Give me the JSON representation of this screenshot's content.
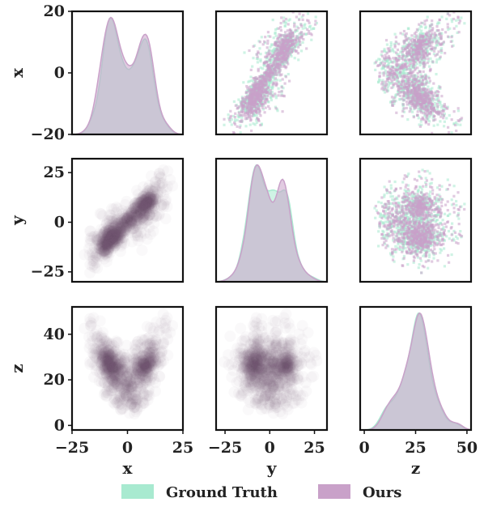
{
  "chart_data": {
    "type": "pairplot",
    "variables": [
      "x",
      "y",
      "z"
    ],
    "series": [
      {
        "name": "Ground Truth",
        "color": "#a8ead0"
      },
      {
        "name": "Ours",
        "color": "#c9a1c9"
      }
    ],
    "legend": {
      "placement": "bottom-center"
    },
    "grid": false,
    "axes": {
      "x": {
        "label": "x",
        "range": [
          -25,
          25
        ],
        "ticks": [
          -25,
          0,
          25
        ],
        "tick_labels": [
          "−25",
          "0",
          "25"
        ]
      },
      "y": {
        "label": "y",
        "range": [
          -30,
          32
        ],
        "ticks": [
          -25,
          0,
          25
        ],
        "tick_labels": [
          "−25",
          "0",
          "25"
        ]
      },
      "z": {
        "label": "z",
        "range": [
          -2,
          52
        ],
        "ticks": [
          0,
          25,
          50
        ],
        "tick_labels": [
          "0",
          "25",
          "50"
        ]
      }
    },
    "row_ticks": {
      "x": {
        "range": [
          -20,
          20
        ],
        "ticks": [
          -20,
          0,
          20
        ],
        "tick_labels": [
          "−20",
          "0",
          "20"
        ]
      },
      "y": {
        "range": [
          -30,
          32
        ],
        "ticks": [
          -25,
          0,
          25
        ],
        "tick_labels": [
          "−25",
          "0",
          "25"
        ]
      },
      "z": {
        "range": [
          -2,
          52
        ],
        "ticks": [
          0,
          20,
          40
        ],
        "tick_labels": [
          "0",
          "20",
          "40"
        ]
      }
    },
    "col_ticks": {
      "x": {
        "tick_labels": [
          "−25",
          "0",
          "25"
        ]
      },
      "y": {
        "tick_labels": [
          "−25",
          "0",
          "25"
        ]
      },
      "z": {
        "tick_labels": [
          "0",
          "25",
          "50"
        ]
      }
    },
    "diagonal": "kde",
    "upper": "scatter",
    "lower": "kde-2d"
  }
}
